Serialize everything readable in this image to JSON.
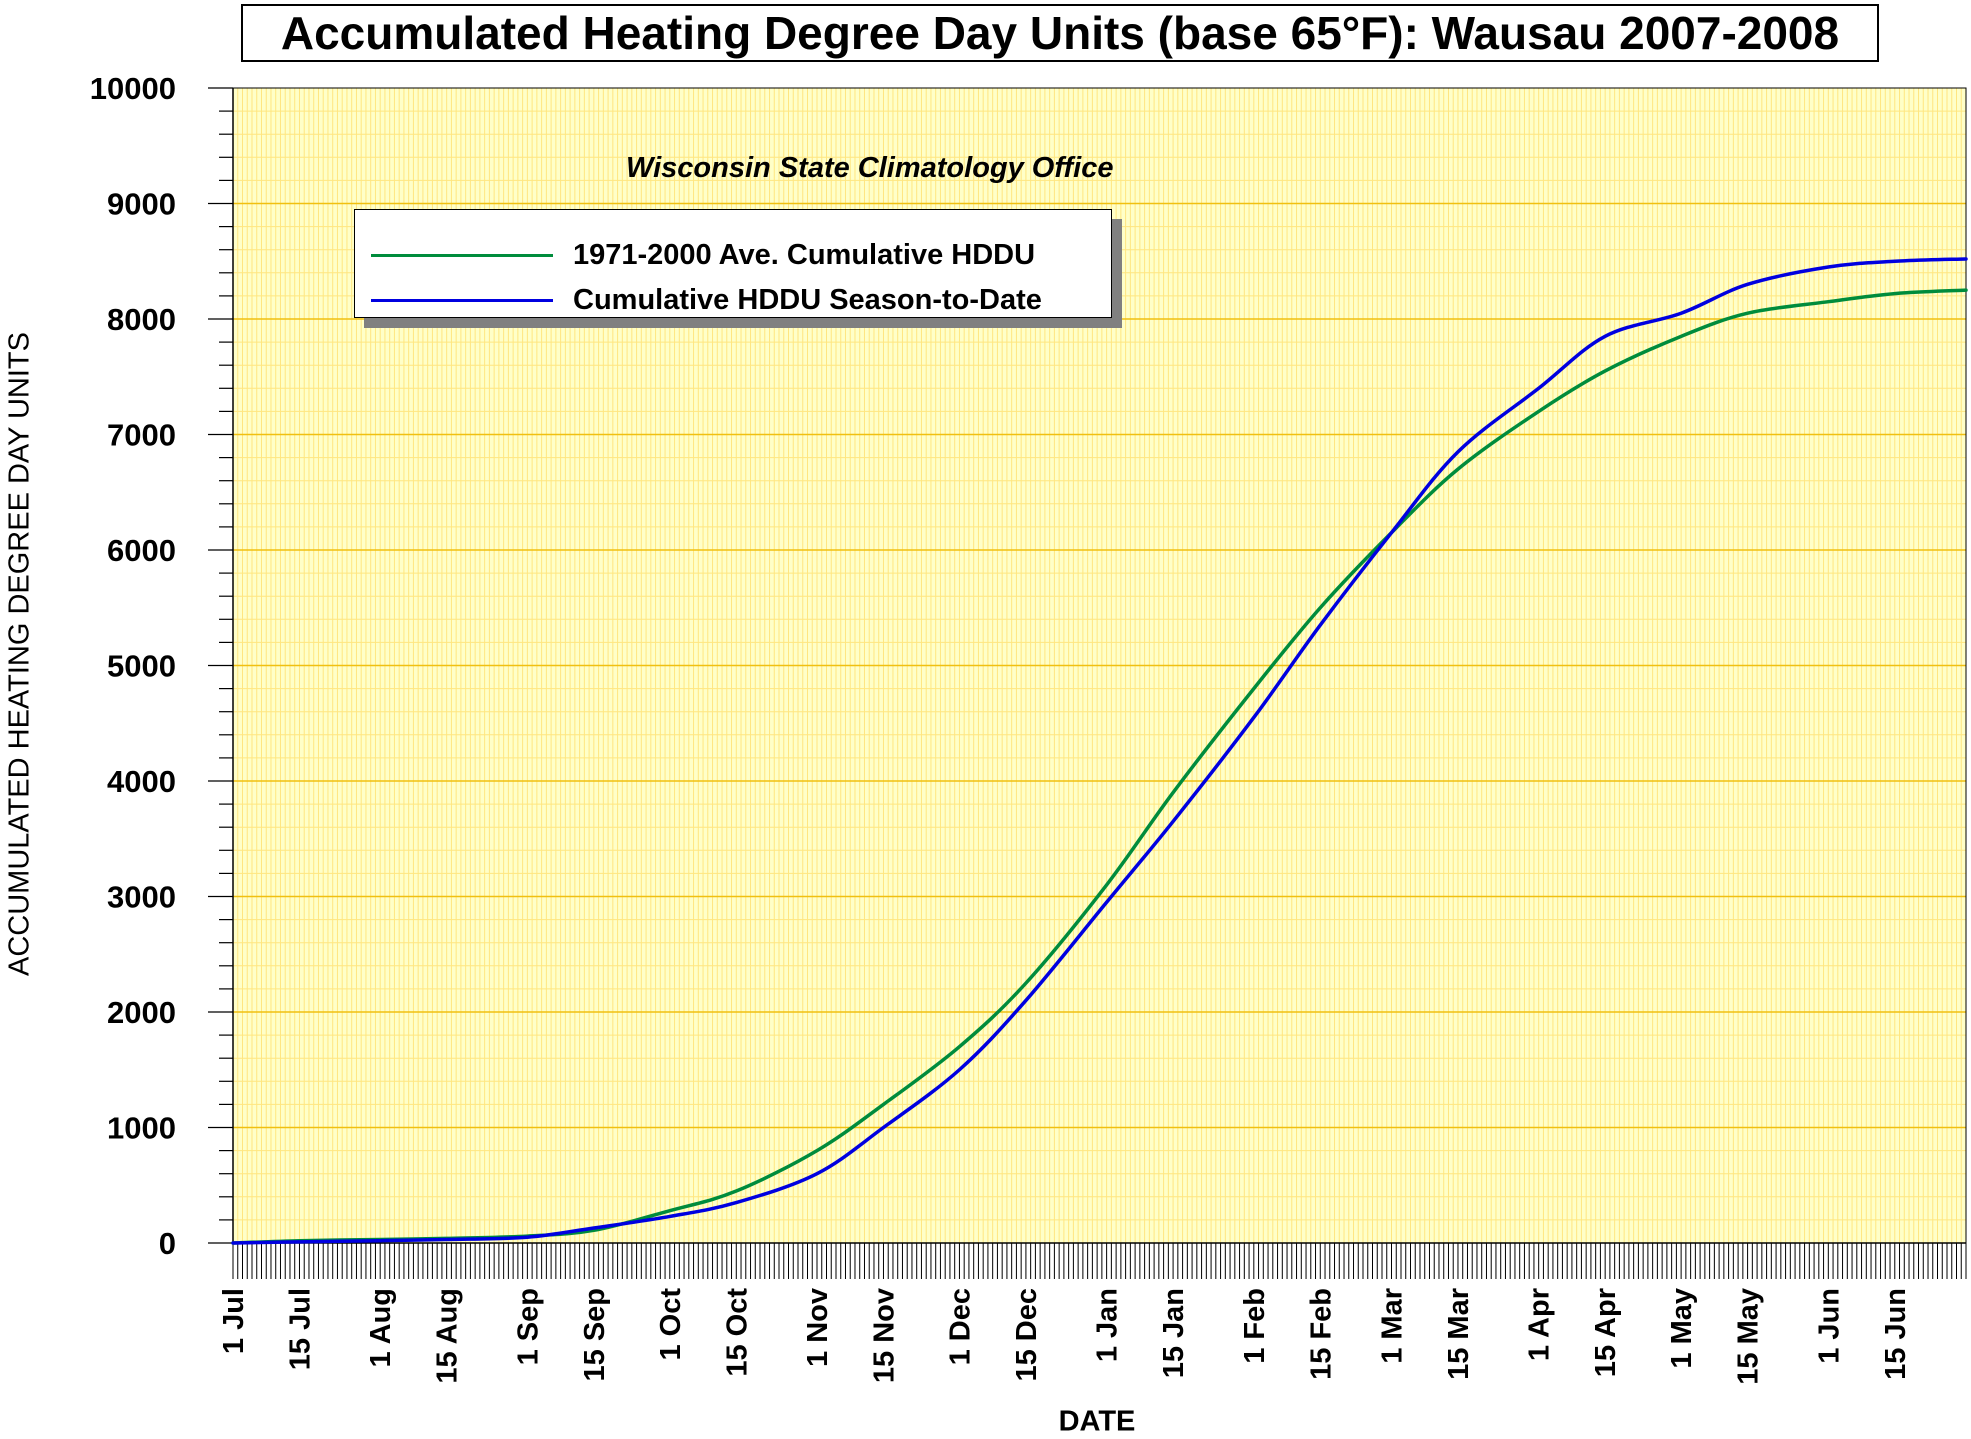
{
  "title": "Accumulated Heating Degree Day Units (base 65°F): Wausau 2007-2008",
  "subtitle": "Wisconsin State Climatology Office",
  "colors": {
    "plot_background": "#FFFFC8",
    "grid_minor": "#FFE680",
    "grid_major": "#F0C010",
    "average_series": "#008C3C",
    "season_series": "#0000E0"
  },
  "legend": {
    "items": [
      {
        "label": "1971-2000 Ave. Cumulative HDDU",
        "color": "#008C3C"
      },
      {
        "label": "Cumulative HDDU Season-to-Date",
        "color": "#0000E0"
      }
    ]
  },
  "chart_data": {
    "type": "line",
    "title": "Accumulated Heating Degree Day Units (base 65°F): Wausau 2007-2008",
    "xlabel": "DATE",
    "ylabel": "ACCUMULATED HEATING DEGREE DAY UNITS",
    "ylim": [
      0,
      10000
    ],
    "xlim": [
      "2007-07-01",
      "2008-06-30"
    ],
    "grid": true,
    "legend_position": "top-left",
    "y_ticks": [
      0,
      1000,
      2000,
      3000,
      4000,
      5000,
      6000,
      7000,
      8000,
      9000,
      10000
    ],
    "x_ticks": [
      {
        "date": "2007-07-01",
        "label": "1 Jul"
      },
      {
        "date": "2007-07-15",
        "label": "15 Jul"
      },
      {
        "date": "2007-08-01",
        "label": "1 Aug"
      },
      {
        "date": "2007-08-15",
        "label": "15 Aug"
      },
      {
        "date": "2007-09-01",
        "label": "1 Sep"
      },
      {
        "date": "2007-09-15",
        "label": "15 Sep"
      },
      {
        "date": "2007-10-01",
        "label": "1 Oct"
      },
      {
        "date": "2007-10-15",
        "label": "15 Oct"
      },
      {
        "date": "2007-11-01",
        "label": "1 Nov"
      },
      {
        "date": "2007-11-15",
        "label": "15 Nov"
      },
      {
        "date": "2007-12-01",
        "label": "1 Dec"
      },
      {
        "date": "2007-12-15",
        "label": "15 Dec"
      },
      {
        "date": "2008-01-01",
        "label": "1 Jan"
      },
      {
        "date": "2008-01-15",
        "label": "15 Jan"
      },
      {
        "date": "2008-02-01",
        "label": "1 Feb"
      },
      {
        "date": "2008-02-15",
        "label": "15 Feb"
      },
      {
        "date": "2008-03-01",
        "label": "1 Mar"
      },
      {
        "date": "2008-03-15",
        "label": "15 Mar"
      },
      {
        "date": "2008-04-01",
        "label": "1 Apr"
      },
      {
        "date": "2008-04-15",
        "label": "15 Apr"
      },
      {
        "date": "2008-05-01",
        "label": "1 May"
      },
      {
        "date": "2008-05-15",
        "label": "15 May"
      },
      {
        "date": "2008-06-01",
        "label": "1 Jun"
      },
      {
        "date": "2008-06-15",
        "label": "15 Jun"
      }
    ],
    "series": [
      {
        "name": "1971-2000 Ave. Cumulative HDDU",
        "color": "#008C3C",
        "points": [
          [
            "2007-07-01",
            0
          ],
          [
            "2007-07-15",
            20
          ],
          [
            "2007-08-01",
            30
          ],
          [
            "2007-08-15",
            40
          ],
          [
            "2007-09-01",
            60
          ],
          [
            "2007-09-15",
            110
          ],
          [
            "2007-10-01",
            280
          ],
          [
            "2007-10-15",
            450
          ],
          [
            "2007-11-01",
            800
          ],
          [
            "2007-11-15",
            1200
          ],
          [
            "2007-12-01",
            1700
          ],
          [
            "2007-12-15",
            2250
          ],
          [
            "2008-01-01",
            3100
          ],
          [
            "2008-01-15",
            3900
          ],
          [
            "2008-02-01",
            4800
          ],
          [
            "2008-02-15",
            5500
          ],
          [
            "2008-03-01",
            6150
          ],
          [
            "2008-03-15",
            6700
          ],
          [
            "2008-04-01",
            7200
          ],
          [
            "2008-04-15",
            7550
          ],
          [
            "2008-05-01",
            7850
          ],
          [
            "2008-05-15",
            8050
          ],
          [
            "2008-06-01",
            8150
          ],
          [
            "2008-06-15",
            8220
          ],
          [
            "2008-06-30",
            8250
          ]
        ]
      },
      {
        "name": "Cumulative HDDU Season-to-Date",
        "color": "#0000E0",
        "points": [
          [
            "2007-07-01",
            0
          ],
          [
            "2007-07-15",
            10
          ],
          [
            "2007-08-01",
            20
          ],
          [
            "2007-08-15",
            30
          ],
          [
            "2007-09-01",
            50
          ],
          [
            "2007-09-15",
            130
          ],
          [
            "2007-10-01",
            230
          ],
          [
            "2007-10-15",
            350
          ],
          [
            "2007-11-01",
            600
          ],
          [
            "2007-11-15",
            1000
          ],
          [
            "2007-12-01",
            1500
          ],
          [
            "2007-12-15",
            2100
          ],
          [
            "2008-01-01",
            2950
          ],
          [
            "2008-01-15",
            3650
          ],
          [
            "2008-02-01",
            4550
          ],
          [
            "2008-02-15",
            5350
          ],
          [
            "2008-03-01",
            6150
          ],
          [
            "2008-03-15",
            6850
          ],
          [
            "2008-04-01",
            7400
          ],
          [
            "2008-04-15",
            7850
          ],
          [
            "2008-05-01",
            8050
          ],
          [
            "2008-05-15",
            8300
          ],
          [
            "2008-06-01",
            8450
          ],
          [
            "2008-06-15",
            8500
          ],
          [
            "2008-06-30",
            8520
          ]
        ]
      }
    ]
  }
}
